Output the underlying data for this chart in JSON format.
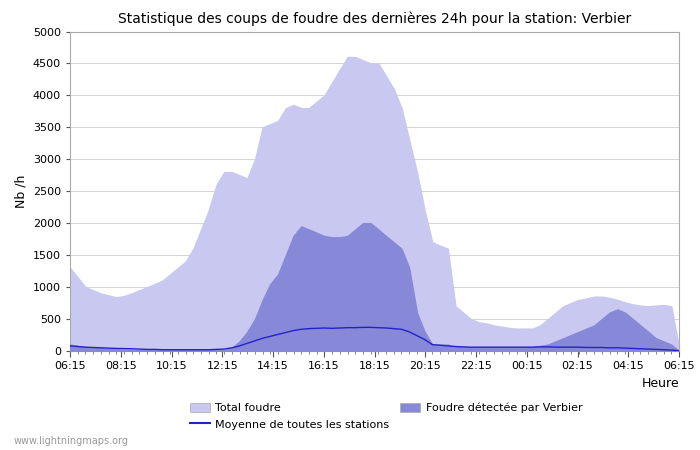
{
  "title": "Statistique des coups de foudre des dernières 24h pour la station: Verbier",
  "xlabel": "Heure",
  "ylabel": "Nb /h",
  "ylim": [
    0,
    5000
  ],
  "yticks": [
    0,
    500,
    1000,
    1500,
    2000,
    2500,
    3000,
    3500,
    4000,
    4500,
    5000
  ],
  "x_labels": [
    "06:15",
    "08:15",
    "10:15",
    "12:15",
    "14:15",
    "16:15",
    "18:15",
    "20:15",
    "22:15",
    "00:15",
    "02:15",
    "04:15",
    "06:15"
  ],
  "watermark": "www.lightningmaps.org",
  "bg_color": "#ffffff",
  "plot_bg_color": "#ffffff",
  "total_color": "#c8c8f0",
  "verbier_color": "#8888d8",
  "moyenne_color": "#2222cc",
  "total_values": [
    1300,
    1150,
    1000,
    950,
    900,
    870,
    840,
    860,
    900,
    950,
    1000,
    1050,
    1100,
    1200,
    1300,
    1400,
    1600,
    1900,
    2200,
    2600,
    2800,
    2800,
    2750,
    2700,
    3000,
    3500,
    3550,
    3600,
    3800,
    3850,
    3800,
    3800,
    3900,
    4000,
    4200,
    4400,
    4600,
    4600,
    4550,
    4500,
    4500,
    4300,
    4100,
    3800,
    3300,
    2800,
    2200,
    1700,
    1650,
    1600,
    700,
    600,
    500,
    450,
    430,
    400,
    380,
    360,
    350,
    350,
    350,
    400,
    500,
    600,
    700,
    750,
    800,
    820,
    850,
    850,
    830,
    800,
    760,
    730,
    710,
    700,
    710,
    720,
    700,
    50
  ],
  "verbier_values": [
    100,
    80,
    60,
    50,
    40,
    30,
    25,
    20,
    15,
    10,
    10,
    10,
    10,
    10,
    10,
    10,
    10,
    10,
    10,
    10,
    10,
    50,
    150,
    300,
    500,
    800,
    1050,
    1200,
    1500,
    1800,
    1950,
    1900,
    1850,
    1800,
    1780,
    1780,
    1800,
    1900,
    2000,
    2000,
    1900,
    1800,
    1700,
    1600,
    1300,
    600,
    300,
    100,
    100,
    100,
    60,
    60,
    60,
    60,
    60,
    60,
    60,
    60,
    60,
    60,
    60,
    80,
    100,
    150,
    200,
    250,
    300,
    350,
    400,
    500,
    600,
    650,
    600,
    500,
    400,
    300,
    200,
    150,
    100,
    0
  ],
  "moyenne_values": [
    80,
    70,
    60,
    55,
    50,
    45,
    40,
    38,
    35,
    30,
    25,
    25,
    20,
    20,
    20,
    20,
    20,
    20,
    20,
    25,
    30,
    50,
    80,
    120,
    160,
    200,
    230,
    260,
    290,
    320,
    340,
    350,
    355,
    360,
    355,
    360,
    365,
    365,
    370,
    370,
    365,
    360,
    350,
    340,
    300,
    240,
    180,
    100,
    90,
    80,
    70,
    65,
    60,
    60,
    60,
    60,
    60,
    60,
    60,
    60,
    60,
    65,
    65,
    60,
    60,
    60,
    60,
    55,
    55,
    55,
    50,
    50,
    45,
    40,
    35,
    30,
    25,
    20,
    15,
    5
  ],
  "n_points": 80
}
